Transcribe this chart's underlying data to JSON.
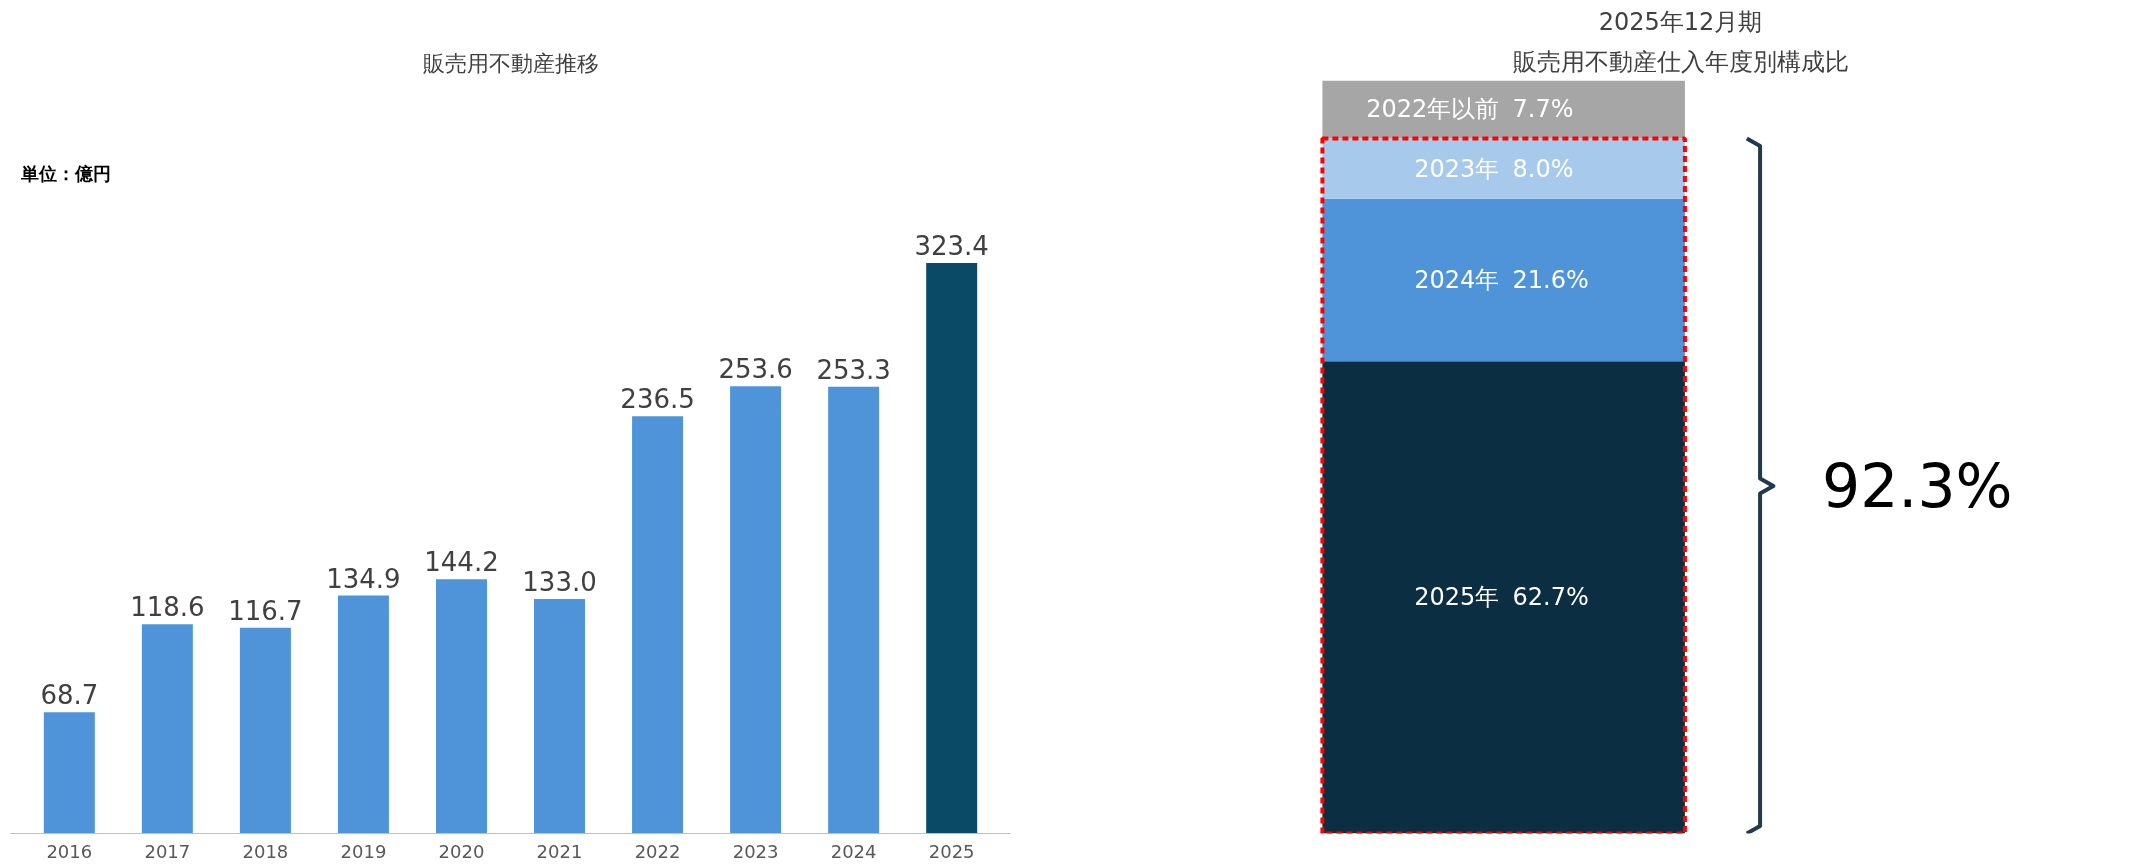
{
  "chart_data": [
    {
      "type": "bar",
      "title": "販売用不動産推移",
      "annotations": [
        "単位：億円"
      ],
      "categories": [
        "2016",
        "2017",
        "2018",
        "2019",
        "2020",
        "2021",
        "2022",
        "2023",
        "2024",
        "2025"
      ],
      "values": [
        68.7,
        118.6,
        116.7,
        134.9,
        144.2,
        133.0,
        236.5,
        253.6,
        253.3,
        323.4
      ],
      "colors": [
        "#4f94d9",
        "#4f94d9",
        "#4f94d9",
        "#4f94d9",
        "#4f94d9",
        "#4f94d9",
        "#4f94d9",
        "#4f94d9",
        "#4f94d9",
        "#0b4a66"
      ],
      "value_labels": [
        "68.7",
        "118.6",
        "116.7",
        "134.9",
        "144.2",
        "133.0",
        "236.5",
        "253.6",
        "253.3",
        "323.4"
      ],
      "tick_labels": "x",
      "grid": false,
      "legend": false
    },
    {
      "type": "bar",
      "stacked": true,
      "title": "2025年12月期",
      "subtitle": "販売用不動産仕入年度別構成比",
      "annotations": [
        "92.3%"
      ],
      "categories": [
        null
      ],
      "series": [
        {
          "name": "2025年",
          "color": "#0b2e42",
          "values": [
            62.7
          ],
          "value_labels": [
            "62.7%"
          ]
        },
        {
          "name": "2024年",
          "color": "#4f94d9",
          "values": [
            21.6
          ],
          "value_labels": [
            "21.6%"
          ]
        },
        {
          "name": "2023年",
          "color": "#a7c9ec",
          "values": [
            8.0
          ],
          "value_labels": [
            "8.0%"
          ]
        },
        {
          "name": "2022年以前",
          "color": "#a6a6a6",
          "values": [
            7.7
          ],
          "value_labels": [
            "7.7%"
          ]
        }
      ],
      "tick_labels": false,
      "grid": false,
      "legend": false
    }
  ]
}
